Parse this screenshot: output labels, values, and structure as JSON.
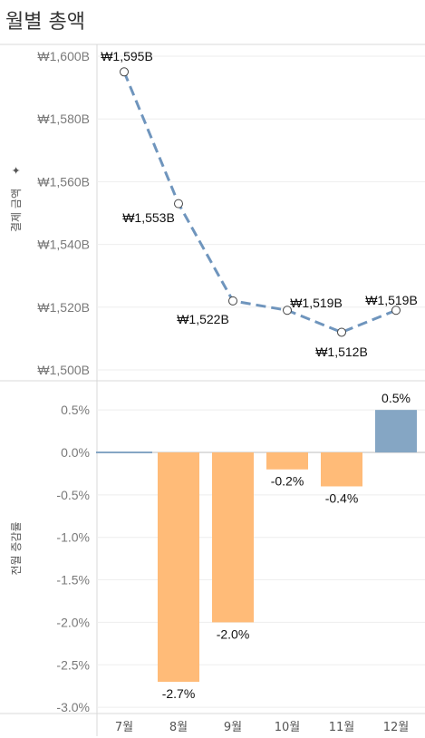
{
  "title": "월별 총액",
  "chart_data": [
    {
      "type": "line",
      "ylabel": "결제 금액",
      "ylim": [
        1500,
        1600
      ],
      "yticks": [
        "₩1,600B",
        "₩1,580B",
        "₩1,560B",
        "₩1,540B",
        "₩1,520B",
        "₩1,500B"
      ],
      "ytick_values": [
        1600,
        1580,
        1560,
        1540,
        1520,
        1500
      ],
      "categories": [
        "7월",
        "8월",
        "9월",
        "10월",
        "11월",
        "12월"
      ],
      "values": [
        1595,
        1553,
        1522,
        1519,
        1512,
        1519
      ],
      "labels": [
        "₩1,595B",
        "₩1,553B",
        "₩1,522B",
        "₩1,519B",
        "₩1,512B",
        "₩1,519B"
      ],
      "color": "#6f95bd",
      "line_style": "dashed",
      "grid": true
    },
    {
      "type": "bar",
      "ylabel": "전월 증감률",
      "ylim": [
        -3.0,
        0.5
      ],
      "yticks": [
        "0.5%",
        "0.0%",
        "-0.5%",
        "-1.0%",
        "-1.5%",
        "-2.0%",
        "-2.5%",
        "-3.0%"
      ],
      "ytick_values": [
        0.5,
        0.0,
        -0.5,
        -1.0,
        -1.5,
        -2.0,
        -2.5,
        -3.0
      ],
      "categories": [
        "7월",
        "8월",
        "9월",
        "10월",
        "11월",
        "12월"
      ],
      "values": [
        0.0,
        -2.7,
        -2.0,
        -0.2,
        -0.4,
        0.5
      ],
      "labels": [
        "",
        "-2.7%",
        "-2.0%",
        "-0.2%",
        "-0.4%",
        "0.5%"
      ],
      "colors": {
        "positive": "#85a6c4",
        "negative": "#ffbb78"
      },
      "grid": true
    }
  ]
}
